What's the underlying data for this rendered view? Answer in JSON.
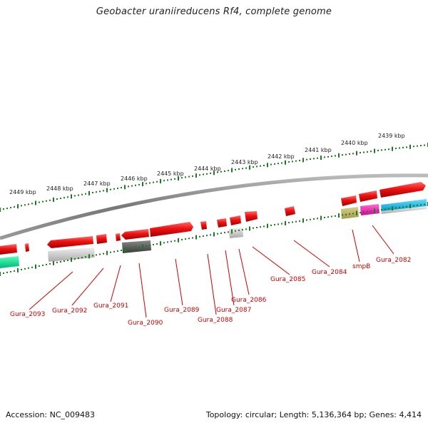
{
  "title": "Geobacter uraniireducens Rf4, complete genome",
  "scale_labels": [
    "2449 kbp",
    "2448 kbp",
    "2447 kbp",
    "2446 kbp",
    "2445 kbp",
    "2444 kbp",
    "2443 kbp",
    "2442 kbp",
    "2441 kbp",
    "2440 kbp",
    "2439 kbp"
  ],
  "gene_labels": [
    "Gura_2093",
    "Gura_2092",
    "Gura_2091",
    "Gura_2090",
    "Gura_2089",
    "Gura_2088",
    "Gura_2087",
    "Gura_2086",
    "Gura_2085",
    "Gura_2084",
    "smpB",
    "Gura_2082"
  ],
  "footer": {
    "accession": "Accession: NC_009483",
    "summary": "Topology: circular; Length: 5,136,364 bp; Genes: 4,414"
  },
  "colors": {
    "scale": "#1e7a1e",
    "gene": "#ee1111",
    "label": "#cc0000",
    "backbone": "#888888"
  }
}
